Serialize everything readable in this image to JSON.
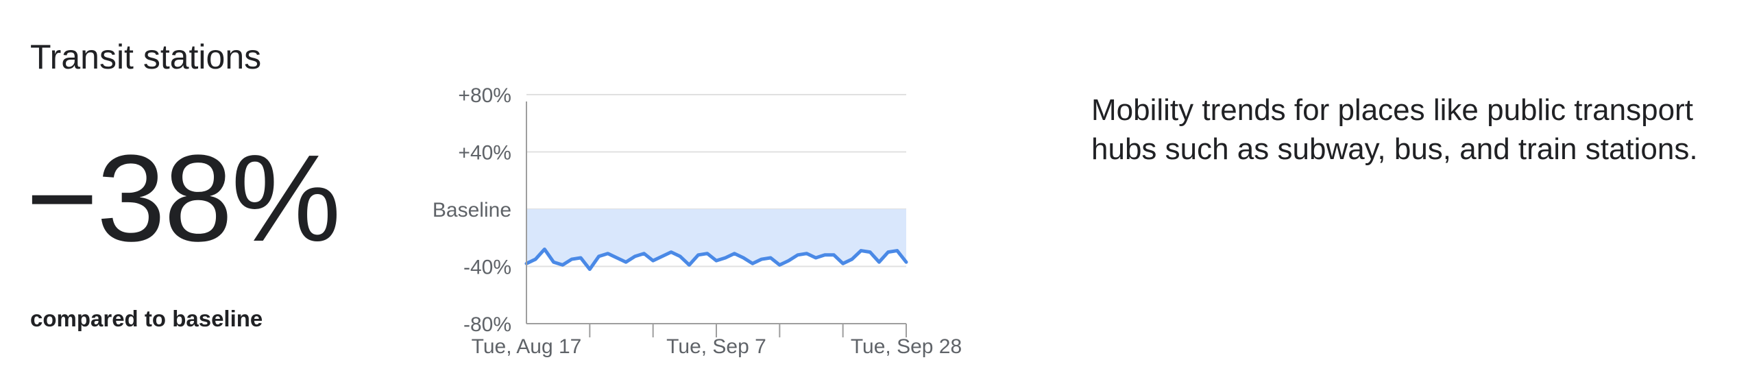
{
  "card": {
    "title": "Transit stations",
    "value": "−38%",
    "caption": "compared to baseline",
    "description": "Mobility trends for places like public transport hubs such as subway, bus, and train stations."
  },
  "colors": {
    "line": "#4a89e6",
    "fill": "#d9e7fc",
    "grid": "#e0e0e0",
    "axis": "#9e9e9e",
    "text": "#202124",
    "tick_text": "#5f6368"
  },
  "chart_data": {
    "type": "area",
    "xlabel": "",
    "ylabel": "",
    "ylim": [
      -80,
      80
    ],
    "y_ticks": [
      80,
      40,
      0,
      -40,
      -80
    ],
    "y_tick_labels": [
      "+80%",
      "+40%",
      "Baseline",
      "-40%",
      "-80%"
    ],
    "x_tick_labels": [
      "Tue, Aug 17",
      "Tue, Sep 7",
      "Tue, Sep 28"
    ],
    "x_tick_label_positions": [
      0,
      21,
      42
    ],
    "x_minor_ticks": [
      7,
      14,
      21,
      28,
      35,
      42
    ],
    "grid": true,
    "series": [
      {
        "values": [
          -38,
          -35,
          -28,
          -37,
          -39,
          -35,
          -34,
          -42,
          -33,
          -31,
          -34,
          -37,
          -33,
          -31,
          -36,
          -33,
          -30,
          -33,
          -39,
          -32,
          -31,
          -36,
          -34,
          -31,
          -34,
          -38,
          -35,
          -34,
          -39,
          -36,
          -32,
          -31,
          -34,
          -32,
          -32,
          -38,
          -35,
          -29,
          -30,
          -37,
          -30,
          -29,
          -37
        ]
      }
    ]
  }
}
